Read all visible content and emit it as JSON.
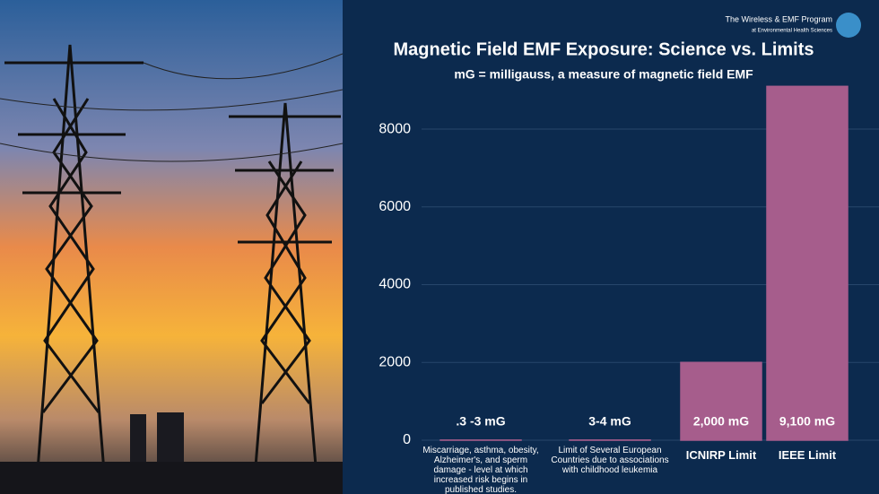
{
  "brand": {
    "name": "The Wireless & EMF Program",
    "tagline": "at Environmental Health Sciences"
  },
  "chart_data": {
    "type": "bar",
    "title": "Magnetic Field EMF Exposure: Science vs. Limits",
    "subtitle": "mG = milligauss, a measure of magnetic field EMF",
    "categories": [
      "Miscarriage, asthma, obesity, Alzheimer's, and sperm damage - level at which increased risk begins in published studies.",
      "Limit of Several European Countries  due to associations with childhood leukemia",
      "ICNIRP Limit",
      "IEEE Limit"
    ],
    "values": [
      3,
      4,
      2000,
      9100
    ],
    "value_labels": [
      ".3 -3 mG",
      "3-4 mG",
      "2,000 mG",
      "9,100 mG"
    ],
    "color": "#a65d8c",
    "ylim": [
      0,
      9200
    ],
    "yticks": [
      0,
      2000,
      4000,
      6000,
      8000
    ],
    "grid": true
  }
}
